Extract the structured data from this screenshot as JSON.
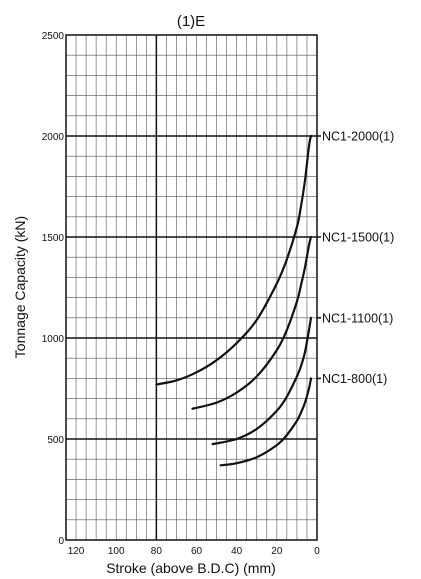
{
  "chart_data": {
    "type": "line",
    "title": "(1)E",
    "xlabel": "Stroke (above B.D.C) (mm)",
    "ylabel": "Tonnage Capacity (kN)",
    "xlim": [
      125,
      0
    ],
    "ylim": [
      0,
      2500
    ],
    "x_reversed": true,
    "grid": true,
    "x_ticks": [
      120,
      100,
      80,
      60,
      40,
      20,
      0
    ],
    "y_ticks": [
      0,
      500,
      1000,
      1500,
      2000,
      2500
    ],
    "series_label_placement": "right-end",
    "series": [
      {
        "name": "NC1-2000(1)",
        "label_y": 2000,
        "x": [
          80,
          70,
          60,
          50,
          40,
          30,
          20,
          15,
          10,
          8,
          6,
          4,
          3
        ],
        "y": [
          770,
          790,
          830,
          890,
          975,
          1090,
          1270,
          1390,
          1550,
          1650,
          1780,
          1950,
          2000
        ]
      },
      {
        "name": "NC1-1500(1)",
        "label_y": 1500,
        "x": [
          62,
          50,
          40,
          30,
          20,
          15,
          10,
          8,
          6,
          4,
          3
        ],
        "y": [
          650,
          680,
          730,
          810,
          940,
          1040,
          1180,
          1260,
          1350,
          1460,
          1500
        ]
      },
      {
        "name": "NC1-1100(1)",
        "label_y": 1100,
        "x": [
          52,
          40,
          30,
          20,
          15,
          10,
          8,
          6,
          4,
          3
        ],
        "y": [
          475,
          500,
          550,
          640,
          710,
          810,
          860,
          930,
          1040,
          1100
        ]
      },
      {
        "name": "NC1-800(1)",
        "label_y": 800,
        "x": [
          48,
          40,
          30,
          20,
          15,
          10,
          8,
          6,
          4,
          3
        ],
        "y": [
          370,
          380,
          410,
          470,
          520,
          590,
          630,
          680,
          750,
          800
        ]
      }
    ]
  }
}
